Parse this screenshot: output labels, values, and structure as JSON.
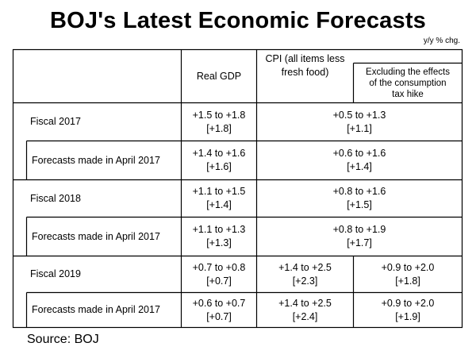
{
  "title": "BOJ's Latest Economic Forecasts",
  "unit": "y/y % chg.",
  "source": "Source: BOJ",
  "header": {
    "real_gdp": "Real GDP",
    "cpi_line1": "CPI (all items less",
    "cpi_line2": "fresh food)",
    "excl_line1": "Excluding the effects",
    "excl_line2": "of the consumption",
    "excl_line3": "tax hike"
  },
  "rows": [
    {
      "label": "Fiscal 2017",
      "gdp_range": "+1.5 to +1.8",
      "gdp_median": "[+1.8]",
      "cpi_range": "+0.5 to +1.3",
      "cpi_median": "[+1.1]"
    },
    {
      "label": "Forecasts made in April 2017",
      "gdp_range": "+1.4 to +1.6",
      "gdp_median": "[+1.6]",
      "cpi_range": "+0.6 to +1.6",
      "cpi_median": "[+1.4]"
    },
    {
      "label": "Fiscal 2018",
      "gdp_range": "+1.1 to +1.5",
      "gdp_median": "[+1.4]",
      "cpi_range": "+0.8 to +1.6",
      "cpi_median": "[+1.5]"
    },
    {
      "label": "Forecasts made in April 2017",
      "gdp_range": "+1.1 to +1.3",
      "gdp_median": "[+1.3]",
      "cpi_range": "+0.8 to +1.9",
      "cpi_median": "[+1.7]"
    },
    {
      "label": "Fiscal 2019",
      "gdp_range": "+0.7 to +0.8",
      "gdp_median": "[+0.7]",
      "cpi_range": "+1.4 to +2.5",
      "cpi_median": "[+2.3]",
      "excl_range": "+0.9 to +2.0",
      "excl_median": "[+1.8]"
    },
    {
      "label": "Forecasts made in April 2017",
      "gdp_range": "+0.6 to +0.7",
      "gdp_median": "[+0.7]",
      "cpi_range": "+1.4 to +2.5",
      "cpi_median": "[+2.4]",
      "excl_range": "+0.9 to +2.0",
      "excl_median": "[+1.9]"
    }
  ]
}
